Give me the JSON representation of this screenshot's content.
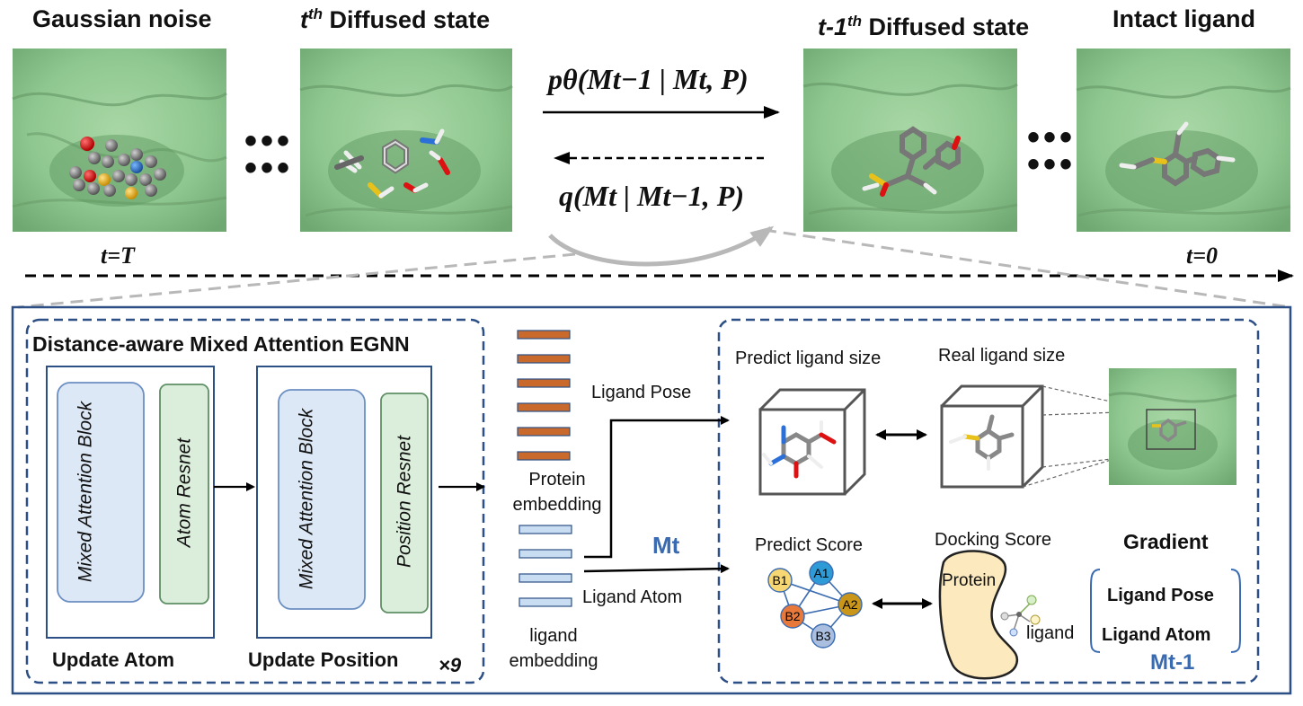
{
  "top": {
    "states": [
      {
        "title": "Gaussian noise"
      },
      {
        "title_sup": "th",
        "title_rest": " Diffused state",
        "title_base": "t"
      },
      {
        "title_base": "t-1",
        "title_sup": "th",
        "title_rest": " Diffused state"
      },
      {
        "title": "Intact ligand"
      }
    ],
    "ellipsis": "•••",
    "reverse_process": "pθ(Mt−1 | Mt, P)",
    "forward_process": "q(Mt | Mt−1, P)",
    "time_start": "t=T",
    "time_end": "t=0",
    "colors": {
      "surface": "#8fc790",
      "surface_dark": "#5f9a62"
    }
  },
  "egnn": {
    "title": "Distance-aware Mixed Attention EGNN",
    "update_atom": {
      "block": "Mixed Attention Block",
      "resnet": "Atom Resnet",
      "label": "Update Atom"
    },
    "update_position": {
      "block": "Mixed Attention Block",
      "resnet": "Position Resnet",
      "label": "Update Position"
    },
    "repeat": "×9"
  },
  "embeddings": {
    "protein_label": "Protein embedding",
    "ligand_label": "ligand embedding",
    "protein_bar_count": 6,
    "ligand_bar_count": 4,
    "colors": {
      "protein": "#c96a2c",
      "ligand": "#c8ddf1"
    }
  },
  "routes": {
    "ligand_pose": "Ligand Pose",
    "ligand_atom": "Ligand Atom",
    "mt": "Mt"
  },
  "right": {
    "predict_size": "Predict ligand size",
    "real_size": "Real ligand size",
    "predict_score": "Predict Score",
    "docking_score": "Docking Score",
    "protein": "Protein",
    "ligand": "ligand",
    "graph_nodes": [
      {
        "id": "B1",
        "color": "#f7d774"
      },
      {
        "id": "A1",
        "color": "#2e9ad6"
      },
      {
        "id": "A2",
        "color": "#c9961a"
      },
      {
        "id": "B2",
        "color": "#e8793a"
      },
      {
        "id": "B3",
        "color": "#aabfe0"
      }
    ],
    "gradient": {
      "title": "Gradient",
      "item1": "Ligand Pose",
      "item2": "Ligand Atom",
      "mt1": "Mt-1"
    }
  }
}
